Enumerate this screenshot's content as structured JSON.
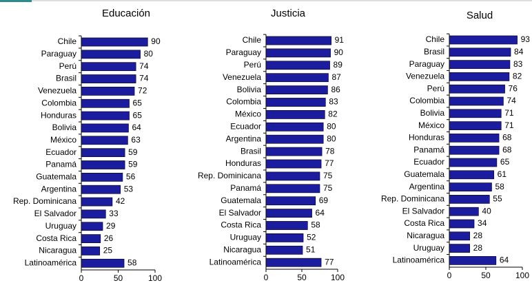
{
  "chart_data": [
    {
      "type": "bar",
      "orientation": "horizontal",
      "title": "Educación",
      "color": "#1c1c9e",
      "categories": [
        "Chile",
        "Paraguay",
        "Perú",
        "Brasil",
        "Venezuela",
        "Colombia",
        "Honduras",
        "Bolivia",
        "México",
        "Ecuador",
        "Panamá",
        "Guatemala",
        "Argentina",
        "Rep. Dominicana",
        "El Salvador",
        "Uruguay",
        "Costa Rica",
        "Nicaragua",
        "Latinoamérica"
      ],
      "values": [
        90,
        80,
        74,
        74,
        72,
        65,
        65,
        64,
        63,
        59,
        59,
        56,
        53,
        42,
        33,
        29,
        26,
        25,
        58
      ],
      "xlim": [
        0,
        100
      ],
      "xticks": [
        0,
        50,
        100
      ]
    },
    {
      "type": "bar",
      "orientation": "horizontal",
      "title": "Justicia",
      "color": "#1c1c9e",
      "categories": [
        "Chile",
        "Paraguay",
        "Perú",
        "Venezuela",
        "Bolivia",
        "Colombia",
        "México",
        "Ecuador",
        "Argentina",
        "Brasil",
        "Honduras",
        "Rep. Dominicana",
        "Panamá",
        "Guatemala",
        "El Salvador",
        "Costa Rica",
        "Uruguay",
        "Nicaragua",
        "Latinoamérica"
      ],
      "values": [
        91,
        90,
        89,
        87,
        86,
        83,
        82,
        80,
        80,
        78,
        77,
        75,
        75,
        69,
        64,
        58,
        52,
        51,
        77
      ],
      "xlim": [
        0,
        100
      ],
      "xticks": [
        0,
        50,
        100
      ]
    },
    {
      "type": "bar",
      "orientation": "horizontal",
      "title": "Salud",
      "color": "#1c1c9e",
      "categories": [
        "Chile",
        "Brasil",
        "Paraguay",
        "Venezuela",
        "Perú",
        "Colombia",
        "Bolivia",
        "México",
        "Honduras",
        "Panamá",
        "Ecuador",
        "Guatemala",
        "Argentina",
        "Rep. Dominicana",
        "El Salvador",
        "Costa Rica",
        "Nicaragua",
        "Uruguay",
        "Latinoamérica"
      ],
      "values": [
        93,
        84,
        83,
        82,
        76,
        74,
        71,
        71,
        68,
        68,
        65,
        61,
        58,
        55,
        40,
        34,
        28,
        28,
        64
      ],
      "xlim": [
        0,
        100
      ],
      "xticks": [
        0,
        50,
        100
      ]
    }
  ]
}
